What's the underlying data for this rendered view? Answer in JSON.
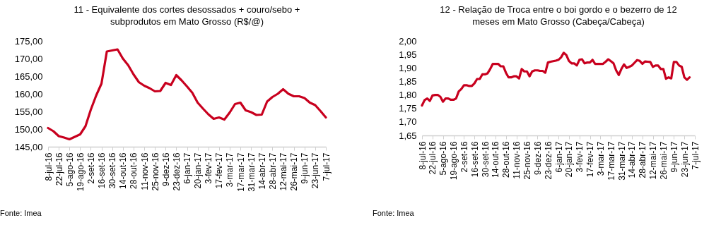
{
  "chart_data": [
    {
      "type": "line",
      "title": "11 - Equivalente dos cortes desossados + couro/sebo + subprodutos em Mato Grosso (R$/@)",
      "categories": [
        "8-jul-16",
        null,
        "22-jul-16",
        null,
        "5-ago-16",
        null,
        "19-ago-16",
        null,
        "2-set-16",
        null,
        "16-set-16",
        null,
        "30-set-16",
        null,
        "14-out-16",
        null,
        "28-out-16",
        null,
        "11-nov-16",
        null,
        "25-nov-16",
        null,
        "9-dez-16",
        null,
        "23-dez-16",
        null,
        "6-jan-17",
        null,
        "20-jan-17",
        null,
        "3-fev-17",
        null,
        "17-fev-17",
        null,
        "3-mar-17",
        null,
        "17-mar-17",
        null,
        "31-mar-17",
        null,
        "14-abr-17",
        null,
        "28-abr-17",
        null,
        "12-mai-17",
        null,
        "26-mai-17",
        null,
        "9-jun-17",
        null,
        "23-jun-17",
        null,
        "7-jul-17"
      ],
      "series": [
        {
          "color": "#c8001e",
          "values": [
            150.3,
            149.4,
            148.0,
            147.6,
            147.1,
            147.8,
            148.5,
            150.8,
            155.5,
            159.5,
            162.9,
            172.0,
            172.3,
            172.6,
            170.0,
            168.1,
            165.5,
            163.3,
            162.3,
            161.6,
            160.7,
            160.8,
            163.1,
            162.5,
            165.3,
            163.8,
            162.1,
            160.3,
            157.5,
            155.8,
            154.2,
            152.9,
            153.3,
            152.7,
            154.7,
            157.1,
            157.5,
            155.3,
            154.8,
            154.0,
            154.1,
            157.8,
            159.1,
            160.0,
            161.3,
            160.0,
            159.3,
            159.3,
            158.8,
            157.5,
            156.8,
            155.1,
            153.3
          ]
        }
      ],
      "ylim": [
        145,
        175
      ],
      "yticks": [
        {
          "value": 145,
          "label": "145,00"
        },
        {
          "value": 150,
          "label": "150,00"
        },
        {
          "value": 155,
          "label": "155,00"
        },
        {
          "value": 160,
          "label": "160,00"
        },
        {
          "value": 165,
          "label": "165,00"
        },
        {
          "value": 170,
          "label": "170,00"
        },
        {
          "value": 175,
          "label": "175,00"
        }
      ],
      "grid": false,
      "legend": false,
      "marker": "none",
      "line_style": "solid",
      "annotations": [
        "Fonte: Imea"
      ]
    },
    {
      "type": "line",
      "title": "12 - Relação de Troca entre o boi gordo e o bezerro de 12 meses em Mato Grosso (Cabeça/Cabeça)",
      "categories": [
        "8-jul-16",
        null,
        null,
        null,
        "22-jul-16",
        null,
        null,
        null,
        "5-ago-16",
        null,
        null,
        null,
        "19-ago-16",
        null,
        null,
        null,
        "2-set-16",
        null,
        null,
        null,
        "16-set-16",
        null,
        null,
        null,
        "30-set-16",
        null,
        null,
        null,
        "14-out-16",
        null,
        null,
        null,
        "28-out-16",
        null,
        null,
        null,
        "11-nov-16",
        null,
        null,
        null,
        "25-nov-16",
        null,
        null,
        null,
        "9-dez-16",
        null,
        null,
        null,
        "23-dez-16",
        null,
        null,
        null,
        "6-jan-17",
        null,
        null,
        null,
        "20-jan-17",
        null,
        null,
        null,
        "3-fev-17",
        null,
        null,
        null,
        "17-fev-17",
        null,
        null,
        null,
        "3-mar-17",
        null,
        null,
        null,
        "17-mar-17",
        null,
        null,
        null,
        "31-mar-17",
        null,
        null,
        null,
        "14-abr-17",
        null,
        null,
        null,
        "28-abr-17",
        null,
        null,
        null,
        "12-mai-17",
        null,
        null,
        null,
        "26-mai-17",
        null,
        null,
        null,
        "9-jun-17",
        null,
        null,
        null,
        "23-jun-17",
        null,
        null,
        null,
        "7-jul-17"
      ],
      "series": [
        {
          "color": "#c8001e",
          "values": [
            1.761,
            1.781,
            1.787,
            1.778,
            1.798,
            1.8,
            1.8,
            1.793,
            1.775,
            1.787,
            1.787,
            1.782,
            1.782,
            1.787,
            1.813,
            1.822,
            1.836,
            1.836,
            1.833,
            1.833,
            1.843,
            1.859,
            1.859,
            1.876,
            1.876,
            1.88,
            1.896,
            1.915,
            1.915,
            1.915,
            1.906,
            1.906,
            1.882,
            1.865,
            1.865,
            1.869,
            1.869,
            1.861,
            1.896,
            1.887,
            1.887,
            1.869,
            1.887,
            1.891,
            1.891,
            1.889,
            1.889,
            1.882,
            1.92,
            1.923,
            1.925,
            1.927,
            1.93,
            1.939,
            1.956,
            1.948,
            1.926,
            1.917,
            1.917,
            1.909,
            1.93,
            1.932,
            1.917,
            1.92,
            1.92,
            1.93,
            1.915,
            1.915,
            1.915,
            1.915,
            1.923,
            1.932,
            1.925,
            1.917,
            1.891,
            1.874,
            1.896,
            1.913,
            1.9,
            1.904,
            1.909,
            1.919,
            1.929,
            1.926,
            1.915,
            1.924,
            1.923,
            1.922,
            1.904,
            1.909,
            1.909,
            1.896,
            1.896,
            1.86,
            1.865,
            1.861,
            1.922,
            1.922,
            1.909,
            1.904,
            1.865,
            1.856,
            1.865,
            null,
            null
          ]
        }
      ],
      "ylim": [
        1.65,
        2.0
      ],
      "yticks": [
        {
          "value": 1.65,
          "label": "1,65"
        },
        {
          "value": 1.7,
          "label": "1,70"
        },
        {
          "value": 1.75,
          "label": "1,75"
        },
        {
          "value": 1.8,
          "label": "1,80"
        },
        {
          "value": 1.85,
          "label": "1,85"
        },
        {
          "value": 1.9,
          "label": "1,90"
        },
        {
          "value": 1.95,
          "label": "1,95"
        },
        {
          "value": 2.0,
          "label": "2,00"
        }
      ],
      "grid": false,
      "legend": false,
      "marker": "none",
      "line_style": "solid",
      "annotations": [
        "Fonte: Imea"
      ]
    }
  ]
}
